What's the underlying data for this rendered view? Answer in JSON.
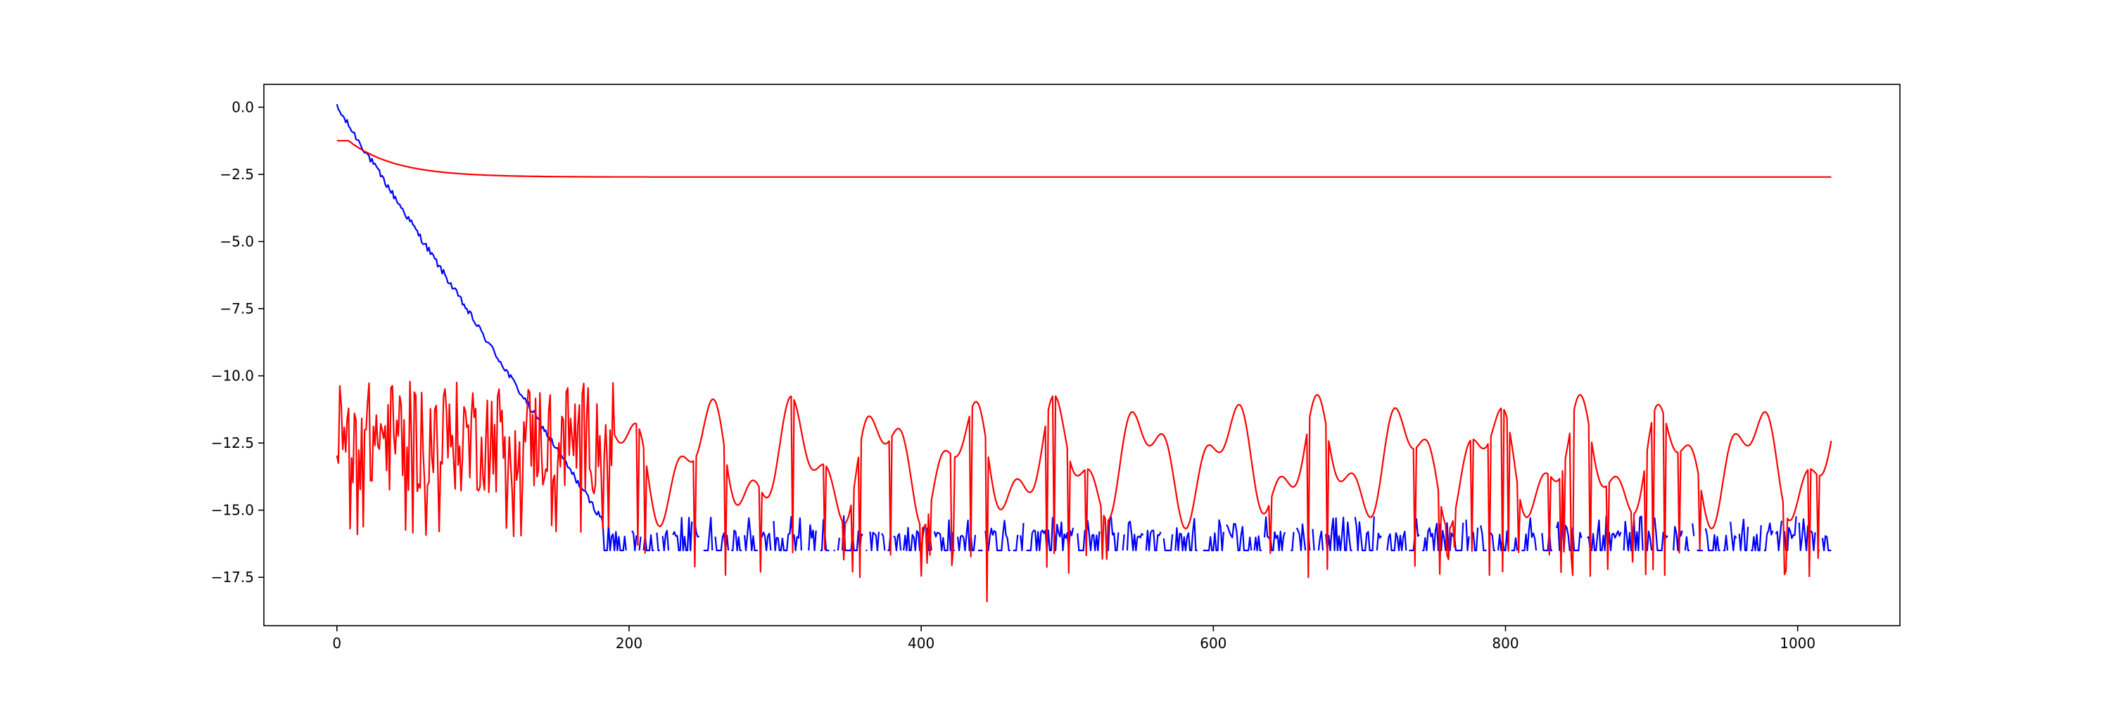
{
  "chart_data": {
    "type": "line",
    "title": "",
    "xlabel": "",
    "ylabel": "",
    "xlim": [
      -50,
      1070
    ],
    "ylim": [
      -19.3,
      0.85
    ],
    "xticks": [
      0,
      200,
      400,
      600,
      800,
      1000
    ],
    "yticks": [
      0.0,
      -2.5,
      -5.0,
      -7.5,
      -10.0,
      -12.5,
      -15.0,
      -17.5
    ],
    "x_tick_labels": [
      "0",
      "200",
      "400",
      "600",
      "800",
      "1000"
    ],
    "y_tick_labels": [
      "0.0",
      "−2.5",
      "−5.0",
      "−7.5",
      "−10.0",
      "−12.5",
      "−15.0",
      "−17.5"
    ],
    "grid": false,
    "legend": "none",
    "x_range": [
      0,
      1023
    ],
    "series": [
      {
        "color": "#0000ff",
        "description_points": [
          [
            0,
            0.0
          ],
          [
            5,
            -0.5
          ],
          [
            15,
            -1.7
          ],
          [
            45,
            -4.0
          ],
          [
            90,
            -7.8
          ],
          [
            130,
            -11.5
          ],
          [
            160,
            -14.2
          ],
          [
            180,
            -15.3
          ],
          [
            200,
            -16.2
          ],
          [
            400,
            -16.0
          ],
          [
            600,
            -16.1
          ],
          [
            800,
            -16.0
          ],
          [
            1023,
            -16.0
          ]
        ]
      },
      {
        "color": "#ff0000",
        "description_points": [
          [
            0,
            -1.25
          ],
          [
            10,
            -1.25
          ],
          [
            20,
            -1.5
          ],
          [
            40,
            -2.0
          ],
          [
            60,
            -2.3
          ],
          [
            80,
            -2.5
          ],
          [
            100,
            -2.55
          ],
          [
            150,
            -2.6
          ],
          [
            1023,
            -2.6
          ]
        ]
      },
      {
        "color": "#ff0000",
        "description_points": [
          [
            0,
            -10.3
          ],
          [
            14,
            -15.9
          ],
          [
            45,
            -15.9
          ],
          [
            110,
            -15.8
          ],
          [
            205,
            -11.0
          ],
          [
            290,
            -17.3
          ],
          [
            345,
            -10.7
          ],
          [
            445,
            -18.4
          ],
          [
            495,
            -10.6
          ],
          [
            520,
            -16.5
          ],
          [
            650,
            -11.5
          ],
          [
            665,
            -17.5
          ],
          [
            730,
            -10.6
          ],
          [
            870,
            -17.2
          ],
          [
            1000,
            -11.0
          ],
          [
            1023,
            -11.6
          ]
        ]
      }
    ]
  }
}
